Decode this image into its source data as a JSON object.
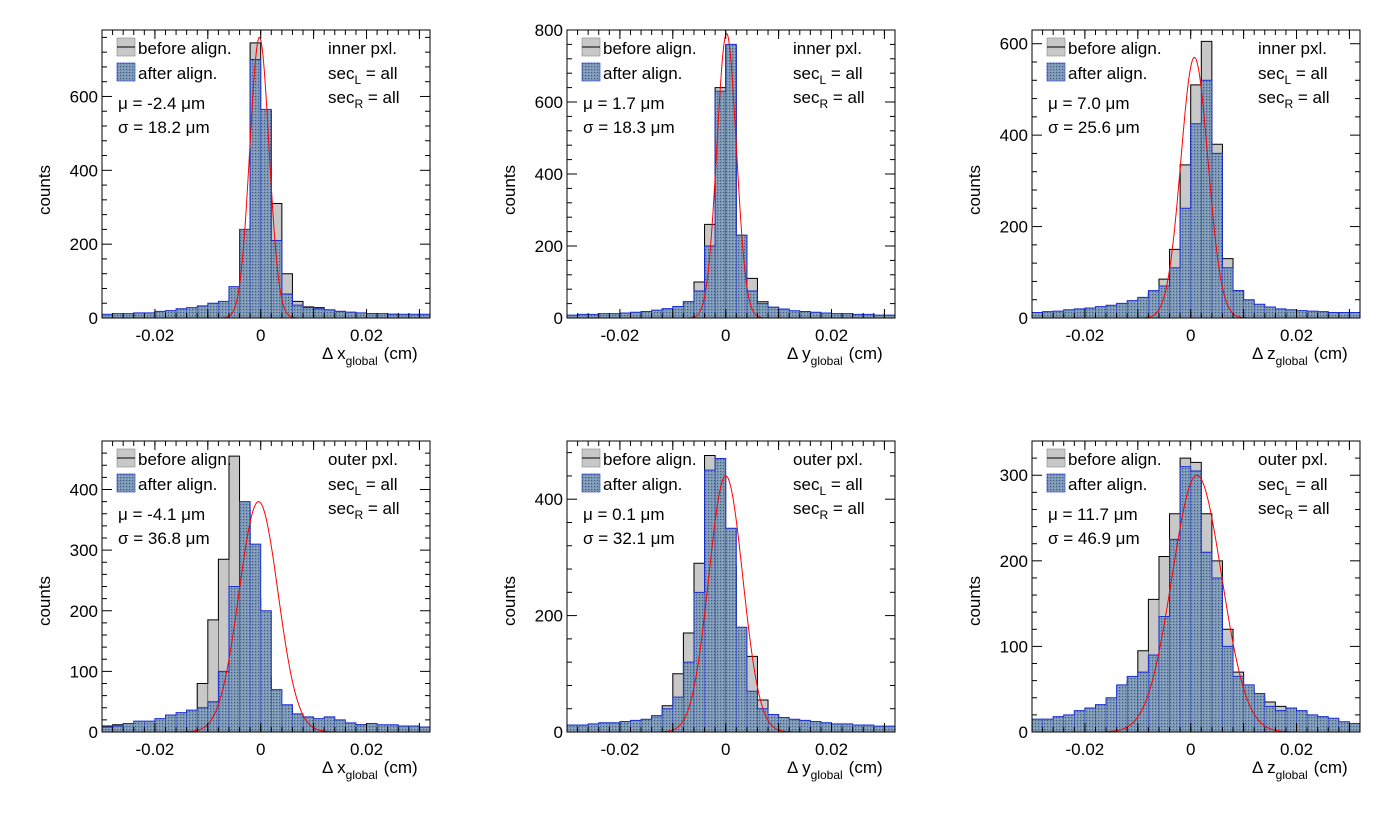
{
  "legend_labels": {
    "before": "before align.",
    "after": "after align."
  },
  "colors": {
    "before_fill": "#c8c8c8",
    "after_fill": "#6e8fb0",
    "after_outline": "#1a2fd0",
    "fit_line": "#ff0000",
    "axis": "#000000"
  },
  "chart_data": [
    {
      "type": "bar",
      "panel": "inner-x",
      "xlabel": "Δ x",
      "xlabel_sub": "global",
      "xlabel_unit": "(cm)",
      "ylabel": "counts",
      "xlim": [
        -0.03,
        0.032
      ],
      "ylim": [
        0,
        780
      ],
      "xticks": [
        -0.02,
        0,
        0.02
      ],
      "xtick_labels": [
        "-0.02",
        "0",
        "0.02"
      ],
      "yticks": [
        0,
        200,
        400,
        600
      ],
      "region": "inner pxl.",
      "sec_L": "all",
      "sec_R": "all",
      "mu_text": "μ = -2.4 μm",
      "sigma_text": "σ = 18.2 μm",
      "fit": {
        "mu": -0.00024,
        "sigma": 0.00182,
        "amplitude": 760
      },
      "bin_edges_start": -0.03,
      "bin_width": 0.002,
      "series": [
        {
          "name": "before align.",
          "values": [
            8,
            8,
            9,
            10,
            10,
            12,
            14,
            16,
            16,
            20,
            28,
            35,
            55,
            225,
            745,
            560,
            310,
            120,
            45,
            30,
            28,
            22,
            18,
            14,
            12,
            12,
            10,
            10,
            8,
            8,
            8
          ]
        },
        {
          "name": "after align.",
          "values": [
            10,
            12,
            12,
            14,
            14,
            18,
            20,
            25,
            28,
            33,
            40,
            45,
            85,
            240,
            700,
            565,
            210,
            65,
            35,
            28,
            25,
            22,
            18,
            16,
            14,
            12,
            12,
            10,
            10,
            10,
            10
          ]
        }
      ]
    },
    {
      "type": "bar",
      "panel": "inner-y",
      "xlabel": "Δ y",
      "xlabel_sub": "global",
      "xlabel_unit": "(cm)",
      "ylabel": "counts",
      "xlim": [
        -0.03,
        0.032
      ],
      "ylim": [
        0,
        800
      ],
      "xticks": [
        -0.02,
        0,
        0.02
      ],
      "xtick_labels": [
        "-0.02",
        "0",
        "0.02"
      ],
      "yticks": [
        0,
        200,
        400,
        600,
        800
      ],
      "region": "inner pxl.",
      "sec_L": "all",
      "sec_R": "all",
      "mu_text": "μ = 1.7 μm",
      "sigma_text": "σ = 18.3 μm",
      "fit": {
        "mu": 0.00017,
        "sigma": 0.00183,
        "amplitude": 790
      },
      "bin_edges_start": -0.03,
      "bin_width": 0.002,
      "series": [
        {
          "name": "before align.",
          "values": [
            6,
            6,
            7,
            8,
            8,
            10,
            12,
            14,
            16,
            20,
            26,
            45,
            100,
            260,
            640,
            755,
            230,
            110,
            45,
            30,
            22,
            18,
            14,
            12,
            10,
            10,
            8,
            8,
            7,
            6,
            6
          ]
        },
        {
          "name": "after align.",
          "values": [
            8,
            10,
            10,
            12,
            12,
            14,
            16,
            18,
            22,
            26,
            32,
            45,
            75,
            200,
            630,
            760,
            230,
            75,
            40,
            30,
            25,
            20,
            18,
            16,
            14,
            12,
            12,
            10,
            10,
            8,
            8
          ]
        }
      ]
    },
    {
      "type": "bar",
      "panel": "inner-z",
      "xlabel": "Δ z",
      "xlabel_sub": "global",
      "xlabel_unit": "(cm)",
      "ylabel": "counts",
      "xlim": [
        -0.03,
        0.032
      ],
      "ylim": [
        0,
        630
      ],
      "xticks": [
        -0.02,
        0,
        0.02
      ],
      "xtick_labels": [
        "-0.02",
        "0",
        "0.02"
      ],
      "yticks": [
        0,
        200,
        400,
        600
      ],
      "region": "inner pxl.",
      "sec_L": "all",
      "sec_R": "all",
      "mu_text": "μ = 7.0 μm",
      "sigma_text": "σ = 25.6 μm",
      "fit": {
        "mu": 0.0007,
        "sigma": 0.00256,
        "amplitude": 570
      },
      "bin_edges_start": -0.03,
      "bin_width": 0.002,
      "series": [
        {
          "name": "before align.",
          "values": [
            10,
            10,
            12,
            14,
            14,
            16,
            18,
            20,
            25,
            30,
            40,
            55,
            85,
            150,
            335,
            510,
            605,
            380,
            130,
            60,
            35,
            25,
            22,
            18,
            16,
            15,
            14,
            12,
            12,
            10,
            10
          ]
        },
        {
          "name": "after align.",
          "values": [
            12,
            14,
            15,
            18,
            20,
            22,
            25,
            28,
            32,
            38,
            45,
            60,
            70,
            110,
            240,
            425,
            520,
            360,
            110,
            60,
            40,
            30,
            24,
            20,
            18,
            16,
            15,
            14,
            12,
            12,
            12
          ]
        }
      ]
    },
    {
      "type": "bar",
      "panel": "outer-x",
      "xlabel": "Δ x",
      "xlabel_sub": "global",
      "xlabel_unit": "(cm)",
      "ylabel": "counts",
      "xlim": [
        -0.03,
        0.032
      ],
      "ylim": [
        0,
        480
      ],
      "xticks": [
        -0.02,
        0,
        0.02
      ],
      "xtick_labels": [
        "-0.02",
        "0",
        "0.02"
      ],
      "yticks": [
        0,
        100,
        200,
        300,
        400
      ],
      "region": "outer pxl.",
      "sec_L": "all",
      "sec_R": "all",
      "mu_text": "μ = -4.1 μm",
      "sigma_text": "σ = 36.8 μm",
      "fit": {
        "mu": -0.00041,
        "sigma": 0.00368,
        "amplitude": 380
      },
      "bin_edges_start": -0.03,
      "bin_width": 0.002,
      "series": [
        {
          "name": "before align.",
          "values": [
            10,
            12,
            14,
            14,
            16,
            18,
            22,
            25,
            35,
            80,
            185,
            285,
            455,
            365,
            220,
            90,
            45,
            35,
            28,
            22,
            18,
            16,
            14,
            12,
            12,
            10,
            10,
            10,
            10,
            8,
            8
          ]
        },
        {
          "name": "after align.",
          "values": [
            8,
            10,
            14,
            18,
            18,
            22,
            28,
            32,
            36,
            40,
            50,
            100,
            240,
            380,
            310,
            200,
            70,
            45,
            30,
            25,
            22,
            25,
            20,
            15,
            12,
            14,
            12,
            12,
            10,
            10,
            8
          ]
        }
      ]
    },
    {
      "type": "bar",
      "panel": "outer-y",
      "xlabel": "Δ y",
      "xlabel_sub": "global",
      "xlabel_unit": "(cm)",
      "ylabel": "counts",
      "xlim": [
        -0.03,
        0.032
      ],
      "ylim": [
        0,
        500
      ],
      "xticks": [
        -0.02,
        0,
        0.02
      ],
      "xtick_labels": [
        "-0.02",
        "0",
        "0.02"
      ],
      "yticks": [
        0,
        200,
        400
      ],
      "region": "outer pxl.",
      "sec_L": "all",
      "sec_R": "all",
      "mu_text": "μ = 0.1 μm",
      "sigma_text": "σ = 32.1 μm",
      "fit": {
        "mu": 1e-05,
        "sigma": 0.00321,
        "amplitude": 440
      },
      "bin_edges_start": -0.03,
      "bin_width": 0.002,
      "series": [
        {
          "name": "before align.",
          "values": [
            8,
            8,
            10,
            10,
            12,
            14,
            16,
            20,
            28,
            45,
            100,
            170,
            290,
            475,
            440,
            285,
            170,
            130,
            55,
            30,
            22,
            18,
            16,
            14,
            12,
            12,
            10,
            10,
            10,
            8,
            8
          ]
        },
        {
          "name": "after align.",
          "values": [
            12,
            12,
            14,
            16,
            16,
            18,
            20,
            22,
            28,
            40,
            60,
            120,
            240,
            450,
            470,
            350,
            180,
            70,
            40,
            30,
            25,
            22,
            20,
            18,
            16,
            14,
            14,
            12,
            12,
            10,
            10
          ]
        }
      ]
    },
    {
      "type": "bar",
      "panel": "outer-z",
      "xlabel": "Δ z",
      "xlabel_sub": "global",
      "xlabel_unit": "(cm)",
      "ylabel": "counts",
      "xlim": [
        -0.03,
        0.032
      ],
      "ylim": [
        0,
        340
      ],
      "xticks": [
        -0.02,
        0,
        0.02
      ],
      "xtick_labels": [
        "-0.02",
        "0",
        "0.02"
      ],
      "yticks": [
        0,
        100,
        200,
        300
      ],
      "region": "outer pxl.",
      "sec_L": "all",
      "sec_R": "all",
      "mu_text": "μ = 11.7 μm",
      "sigma_text": "σ = 46.9 μm",
      "fit": {
        "mu": 0.00117,
        "sigma": 0.00469,
        "amplitude": 300
      },
      "bin_edges_start": -0.03,
      "bin_width": 0.002,
      "series": [
        {
          "name": "before align.",
          "values": [
            10,
            10,
            12,
            14,
            16,
            20,
            25,
            30,
            40,
            60,
            95,
            155,
            205,
            255,
            320,
            315,
            255,
            200,
            120,
            70,
            50,
            40,
            35,
            30,
            25,
            20,
            18,
            15,
            12,
            10,
            10
          ]
        },
        {
          "name": "after align.",
          "values": [
            15,
            15,
            18,
            20,
            25,
            28,
            32,
            40,
            55,
            65,
            70,
            90,
            135,
            225,
            310,
            305,
            210,
            180,
            100,
            65,
            55,
            45,
            30,
            25,
            28,
            25,
            20,
            18,
            16,
            12,
            10
          ]
        }
      ]
    }
  ]
}
